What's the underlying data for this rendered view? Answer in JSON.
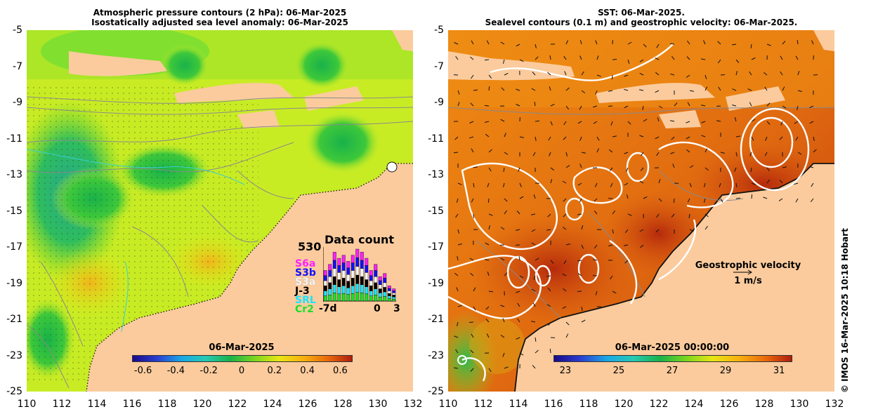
{
  "left_panel": {
    "title_line1": "Atmospheric pressure contours (2 hPa): 06-Mar-2025",
    "title_line2": "Isostatically adjusted sea level anomaly: 06-Mar-2025",
    "colorbar": {
      "label": "06-Mar-2025",
      "ticks": [
        "-0.6",
        "-0.4",
        "-0.2",
        "0",
        "0.2",
        "0.4",
        "0.6"
      ],
      "colors": [
        "#1a0a8a",
        "#2a3ed0",
        "#1aa7e6",
        "#27c9b4",
        "#19b24a",
        "#7ad61e",
        "#e7e614",
        "#f7b10f",
        "#ea6a0c",
        "#b01d0c"
      ]
    },
    "data_count": {
      "title": "Data count",
      "max_label": "530",
      "satellites": [
        {
          "name": "S6a",
          "color": "#ff20ff"
        },
        {
          "name": "S3b",
          "color": "#1010ff"
        },
        {
          "name": "S3a",
          "color": "#f5f5f5"
        },
        {
          "name": "J-3",
          "color": "#000000"
        },
        {
          "name": "SRL",
          "color": "#18e4ff"
        },
        {
          "name": "Cr2",
          "color": "#19e02a"
        }
      ],
      "x_labels": [
        "-7d",
        "0",
        "3"
      ],
      "bar_totals": [
        10,
        12,
        16,
        14,
        15,
        13,
        15,
        17,
        16,
        14,
        10,
        12,
        8,
        9,
        5,
        4
      ]
    }
  },
  "right_panel": {
    "title_line1": "SST: 06-Mar-2025.",
    "title_line2": "Sealevel contours (0.1 m) and geostrophic velocity: 06-Mar-2025.",
    "colorbar": {
      "label": "06-Mar-2025 00:00:00",
      "ticks": [
        "23",
        "25",
        "27",
        "29",
        "31"
      ],
      "colors": [
        "#1a0a8a",
        "#2a3ed0",
        "#1aa7e6",
        "#27c9b4",
        "#19b24a",
        "#7ad61e",
        "#e7e614",
        "#f7b10f",
        "#ea6a0c",
        "#b01d0c"
      ]
    },
    "velocity_legend": {
      "title": "Geostrophic velocity",
      "unit": "1 m/s"
    }
  },
  "axes": {
    "y_ticks": [
      "-5",
      "-7",
      "-9",
      "-11",
      "-13",
      "-15",
      "-17",
      "-19",
      "-21",
      "-23",
      "-25"
    ],
    "x_ticks": [
      "110",
      "112",
      "114",
      "116",
      "118",
      "120",
      "122",
      "124",
      "126",
      "128",
      "130",
      "132"
    ]
  },
  "credit": "© IMOS 16-Mar-2025 10:18 Hobart",
  "palette": {
    "land": "#fbcb9d",
    "sla_base": "#c8ec24",
    "sst_base": "#e0761a"
  }
}
